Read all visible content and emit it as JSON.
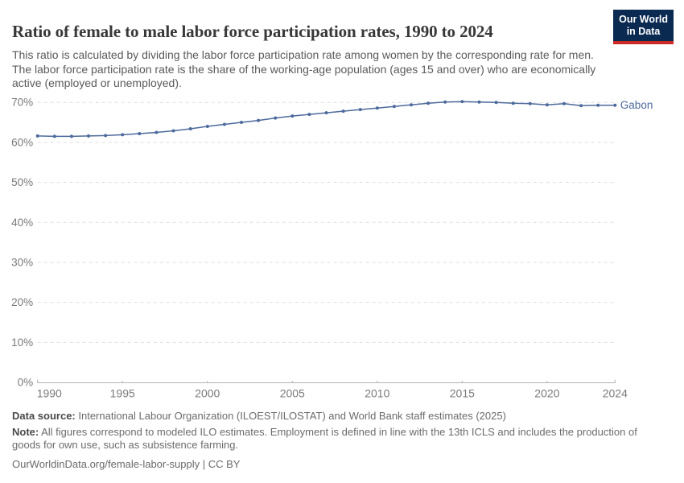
{
  "header": {
    "title": "Ratio of female to male labor force participation rates, 1990 to 2024",
    "subtitle": "This ratio is calculated by dividing the labor force participation rate among women by the corresponding rate for men. The labor force participation rate is the share of the working-age population (ages 15 and over) who are economically active (employed or unemployed)."
  },
  "logo": {
    "line1": "Our World",
    "line2": "in Data",
    "bg_color": "#0b2a52",
    "accent_color": "#cc2a24"
  },
  "chart_data": {
    "type": "line",
    "title": "Ratio of female to male labor force participation rates, 1990 to 2024",
    "xlabel": "",
    "ylabel": "",
    "xlim": [
      1990,
      2024
    ],
    "ylim": [
      0,
      70
    ],
    "grid": "horizontal-dashed",
    "legend_position": "end-of-line-label",
    "x_ticks": [
      1990,
      1995,
      2000,
      2005,
      2010,
      2015,
      2020,
      2024
    ],
    "x_tick_labels": [
      "1990",
      "1995",
      "2000",
      "2005",
      "2010",
      "2015",
      "2020",
      "2024"
    ],
    "y_ticks": [
      0,
      10,
      20,
      30,
      40,
      50,
      60,
      70
    ],
    "y_tick_labels": [
      "0%",
      "10%",
      "20%",
      "30%",
      "40%",
      "50%",
      "60%",
      "70%"
    ],
    "series": [
      {
        "name": "Gabon",
        "color": "#4C6A9C",
        "x": [
          1990,
          1991,
          1992,
          1993,
          1994,
          1995,
          1996,
          1997,
          1998,
          1999,
          2000,
          2001,
          2002,
          2003,
          2004,
          2005,
          2006,
          2007,
          2008,
          2009,
          2010,
          2011,
          2012,
          2013,
          2014,
          2015,
          2016,
          2017,
          2018,
          2019,
          2020,
          2021,
          2022,
          2023,
          2024
        ],
        "y": [
          61.6,
          61.5,
          61.5,
          61.6,
          61.7,
          61.9,
          62.2,
          62.5,
          62.9,
          63.4,
          64.0,
          64.5,
          65.0,
          65.5,
          66.1,
          66.6,
          67.0,
          67.4,
          67.8,
          68.2,
          68.6,
          69.0,
          69.4,
          69.8,
          70.1,
          70.2,
          70.1,
          70.0,
          69.8,
          69.7,
          69.4,
          69.7,
          69.2,
          69.3,
          69.3
        ]
      }
    ]
  },
  "colors": {
    "line": "#4C6A9C",
    "grid": "#dedede",
    "axis": "#b3b3b3",
    "tick_text": "#7a7a7a"
  },
  "footer": {
    "datasource_label": "Data source:",
    "datasource_text": " International Labour Organization (ILOEST/ILOSTAT) and World Bank staff estimates (2025)",
    "note_label": "Note:",
    "note_text": " All figures correspond to modeled ILO estimates. Employment is defined in line with the 13th ICLS and includes the production of goods for own use, such as subsistence farming.",
    "citation": "OurWorldinData.org/female-labor-supply | CC BY"
  }
}
